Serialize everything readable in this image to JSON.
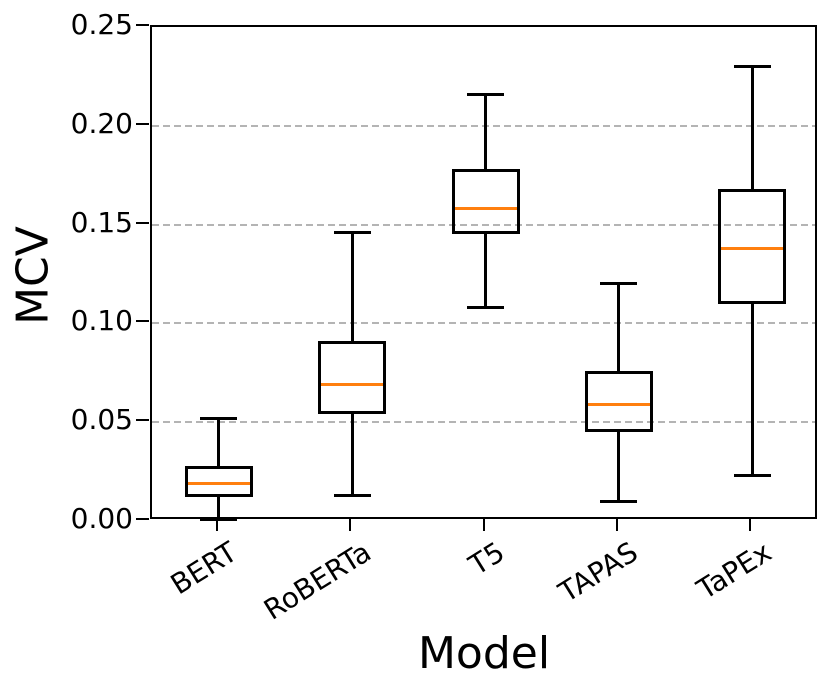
{
  "chart_data": {
    "type": "boxplot",
    "xlabel": "Model",
    "ylabel": "MCV",
    "categories": [
      "BERT",
      "RoBERTa",
      "T5",
      "TAPAS",
      "TaPEx"
    ],
    "series": [
      {
        "name": "BERT",
        "min": 0.001,
        "q1": 0.012,
        "median": 0.019,
        "q3": 0.028,
        "max": 0.052
      },
      {
        "name": "RoBERTa",
        "min": 0.013,
        "q1": 0.054,
        "median": 0.069,
        "q3": 0.091,
        "max": 0.146
      },
      {
        "name": "T5",
        "min": 0.108,
        "q1": 0.145,
        "median": 0.158,
        "q3": 0.178,
        "max": 0.216
      },
      {
        "name": "TAPAS",
        "min": 0.01,
        "q1": 0.045,
        "median": 0.059,
        "q3": 0.076,
        "max": 0.12
      },
      {
        "name": "TaPEx",
        "min": 0.023,
        "q1": 0.11,
        "median": 0.138,
        "q3": 0.168,
        "max": 0.23
      }
    ],
    "ylim": [
      0,
      0.25
    ],
    "yticks": [
      0.0,
      0.05,
      0.1,
      0.15,
      0.2,
      0.25
    ],
    "ytick_labels": [
      "0.00",
      "0.05",
      "0.10",
      "0.15",
      "0.20",
      "0.25"
    ],
    "grid_values": [
      0.05,
      0.1,
      0.15,
      0.2
    ],
    "grid_style": "dashed horizontal",
    "legend": "none",
    "colors": {
      "median": "#ff7f0e",
      "box_edge": "#000000",
      "grid": "#b4b4b4",
      "background": "#ffffff",
      "text": "#000000"
    }
  }
}
